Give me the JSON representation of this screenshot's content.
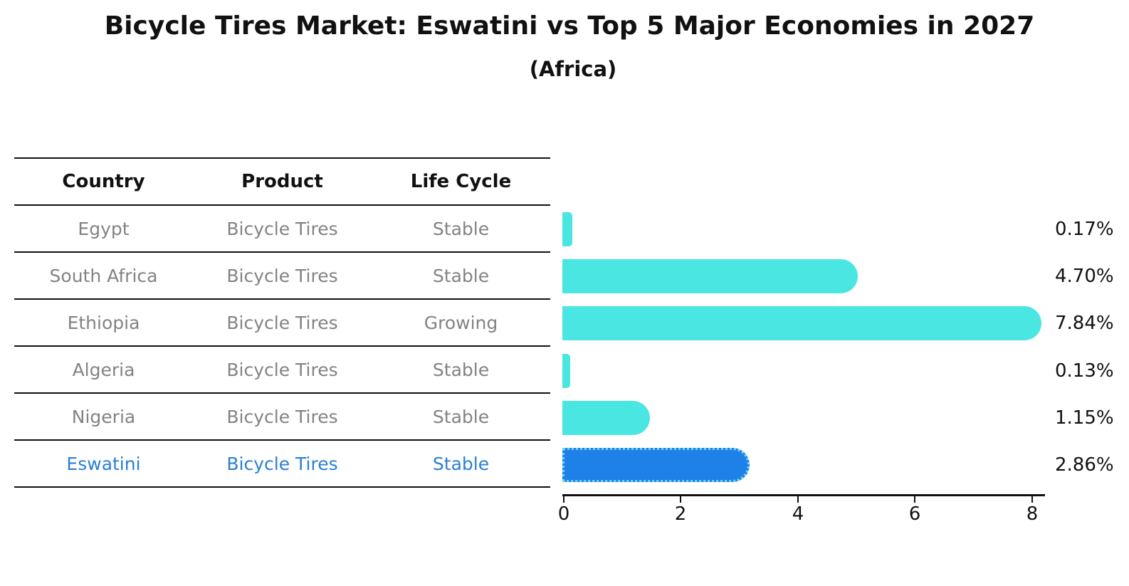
{
  "header": {
    "title": "Bicycle Tires Market: Eswatini vs Top 5 Major Economies in 2027",
    "subtitle": "(Africa)"
  },
  "table": {
    "columns": [
      "Country",
      "Product",
      "Life Cycle"
    ],
    "rows": [
      {
        "country": "Egypt",
        "product": "Bicycle Tires",
        "life_cycle": "Stable",
        "highlighted": false
      },
      {
        "country": "South Africa",
        "product": "Bicycle Tires",
        "life_cycle": "Stable",
        "highlighted": false
      },
      {
        "country": "Ethiopia",
        "product": "Bicycle Tires",
        "life_cycle": "Growing",
        "highlighted": false
      },
      {
        "country": "Algeria",
        "product": "Bicycle Tires",
        "life_cycle": "Stable",
        "highlighted": false
      },
      {
        "country": "Nigeria",
        "product": "Bicycle Tires",
        "life_cycle": "Stable",
        "highlighted": false
      },
      {
        "country": "Eswatini",
        "product": "Bicycle Tires",
        "life_cycle": "Stable",
        "highlighted": true
      }
    ]
  },
  "chart_data": {
    "type": "bar",
    "orientation": "horizontal",
    "title": "Bicycle Tires Market: Eswatini vs Top 5 Major Economies in 2027",
    "subtitle": "(Africa)",
    "categories": [
      "Egypt",
      "South Africa",
      "Ethiopia",
      "Algeria",
      "Nigeria",
      "Eswatini"
    ],
    "values": [
      0.17,
      4.7,
      7.84,
      0.13,
      1.15,
      2.86
    ],
    "value_labels": [
      "0.17%",
      "4.70%",
      "7.84%",
      "0.13%",
      "1.15%",
      "2.86%"
    ],
    "x_ticks": [
      0,
      2,
      4,
      6,
      8
    ],
    "xlim": [
      0,
      8.24
    ],
    "grid": false,
    "legend": "none",
    "bar_color": "#4AE6E2",
    "highlight_color": "#1E81E8",
    "highlight_border_color": "#74D2F4",
    "highlight_index": 5,
    "xlabel": "",
    "ylabel": ""
  }
}
